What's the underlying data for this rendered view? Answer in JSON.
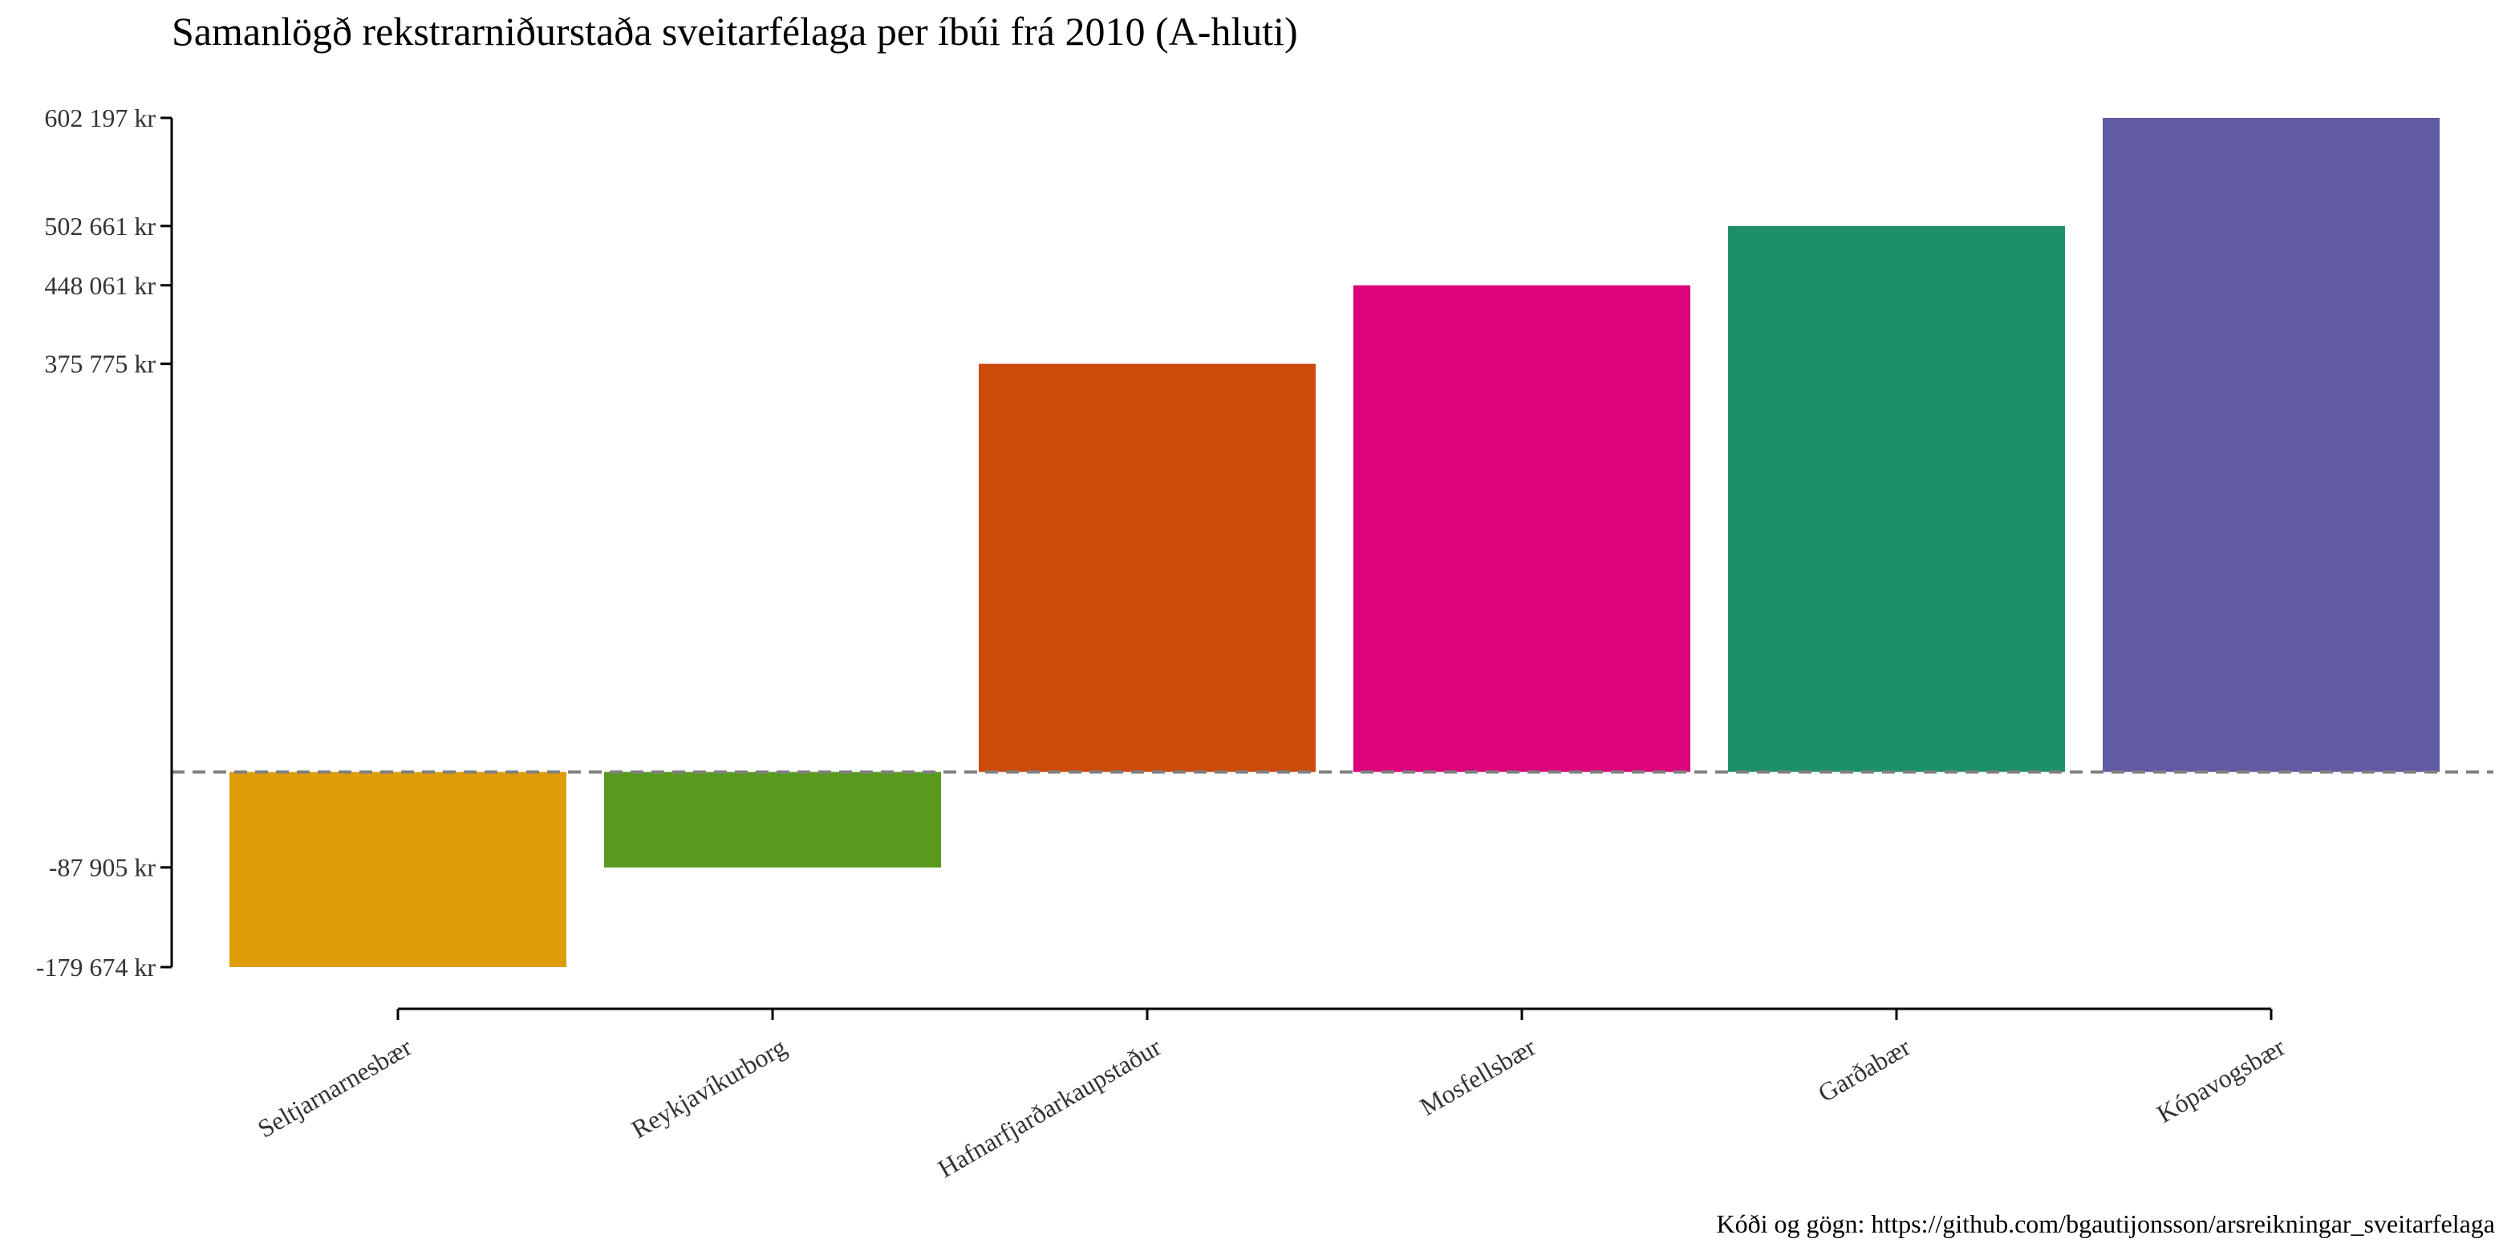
{
  "chart_data": {
    "type": "bar",
    "title": "Samanlögð rekstrarniðurstaða sveitarfélaga per íbúi frá 2010 (A-hluti)",
    "caption": "Kóði og gögn: https://github.com/bgautijonsson/arsreikningar_sveitarfelaga",
    "xlabel": "",
    "ylabel": "",
    "categories": [
      "Seltjarnarnesbær",
      "Reykjavíkurborg",
      "Hafnarfjarðarkaupstaður",
      "Mosfellsbær",
      "Garðabær",
      "Kópavogsbær"
    ],
    "values": [
      -179674,
      -87905,
      375775,
      448061,
      502661,
      602197
    ],
    "colors": [
      "#DE9C09",
      "#589A1D",
      "#CC4A0A",
      "#DD037A",
      "#1D906A",
      "#615AA4"
    ],
    "ytick_values": [
      -179674,
      -87905,
      375775,
      448061,
      502661,
      602197
    ],
    "ytick_labels": [
      "-179 674 kr",
      "-87 905 kr",
      "375 775 kr",
      "448 061 kr",
      "502 661 kr",
      "602 197 kr"
    ],
    "ylim": [
      -179674,
      602197
    ],
    "reference_line": 0,
    "grid": false,
    "legend": "none"
  }
}
